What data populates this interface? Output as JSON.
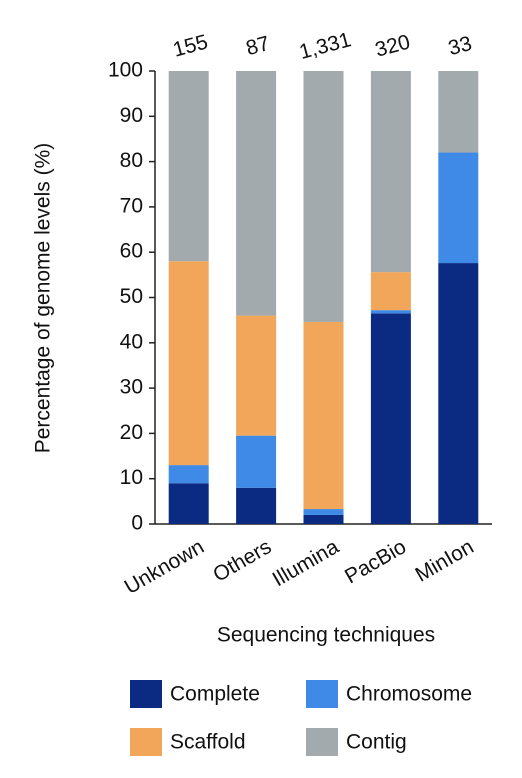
{
  "chart_data": {
    "type": "stacked_bar",
    "y_label": "Percentage of genome levels (%)",
    "x_label": "Sequencing techniques",
    "categories": [
      "Unknown",
      "Others",
      "Illumina",
      "PacBio",
      "MinIon"
    ],
    "annotations": [
      "155",
      "87",
      "1,331",
      "320",
      "33"
    ],
    "series": [
      {
        "name": "Complete",
        "color": "#0b2a82",
        "values": [
          9,
          8,
          2,
          46.5,
          57.6
        ]
      },
      {
        "name": "Chromosome",
        "color": "#3f8ae6",
        "values": [
          4,
          11.5,
          1.3,
          0.7,
          24.4
        ]
      },
      {
        "name": "Scaffold",
        "color": "#f2a65a",
        "values": [
          45,
          26.5,
          41.3,
          8.4,
          0
        ]
      },
      {
        "name": "Contig",
        "color": "#a3aaae",
        "values": [
          42,
          54,
          55.4,
          44.4,
          18
        ]
      }
    ],
    "ylim": [
      0,
      100
    ],
    "yticks": [
      0,
      10,
      20,
      30,
      40,
      50,
      60,
      70,
      80,
      90,
      100
    ]
  }
}
